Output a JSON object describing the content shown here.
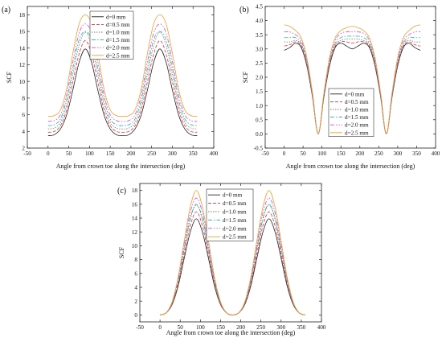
{
  "colors": [
    "#222222",
    "#e8333b",
    "#7a7a7a",
    "#2bb0a0",
    "#d24bd0",
    "#f0a030"
  ],
  "chart_data": [
    {
      "panel": "(a)",
      "type": "line",
      "xlabel": "Angle from crown toe along the intersection (deg)",
      "ylabel": "SCF",
      "xlim": [
        -50,
        400
      ],
      "ylim": [
        2,
        19
      ],
      "xticks": [
        -50,
        0,
        50,
        100,
        150,
        200,
        250,
        300,
        350,
        400
      ],
      "yticks": [
        2,
        4,
        6,
        8,
        10,
        12,
        14,
        16,
        18
      ],
      "legend": "top-center",
      "x": [
        0,
        15,
        30,
        45,
        60,
        75,
        90,
        105,
        120,
        135,
        150,
        165,
        180,
        195,
        210,
        225,
        240,
        255,
        270,
        285,
        300,
        315,
        330,
        345,
        360
      ],
      "series": [
        {
          "name": "d=0 mm",
          "values": [
            3.5,
            3.6,
            4.3,
            6.0,
            9.0,
            12.3,
            13.9,
            12.3,
            9.0,
            6.0,
            4.3,
            3.6,
            3.5,
            3.6,
            4.3,
            6.0,
            9.0,
            12.3,
            13.9,
            12.3,
            9.0,
            6.0,
            4.3,
            3.6,
            3.5
          ]
        },
        {
          "name": "d=0.5 mm",
          "values": [
            3.9,
            4.0,
            4.7,
            6.6,
            10.0,
            13.3,
            14.9,
            13.3,
            10.0,
            6.6,
            4.7,
            4.0,
            3.9,
            4.0,
            4.7,
            6.6,
            10.0,
            13.3,
            14.9,
            13.3,
            10.0,
            6.6,
            4.7,
            4.0,
            3.9
          ]
        },
        {
          "name": "d=1.0 mm",
          "values": [
            4.3,
            4.4,
            5.1,
            7.2,
            10.9,
            14.3,
            15.9,
            14.3,
            10.9,
            7.2,
            5.1,
            4.4,
            4.3,
            4.4,
            5.1,
            7.2,
            10.9,
            14.3,
            15.9,
            14.3,
            10.9,
            7.2,
            5.1,
            4.4,
            4.3
          ]
        },
        {
          "name": "d=1.5 mm",
          "values": [
            4.7,
            4.8,
            5.5,
            7.8,
            11.6,
            15.0,
            16.0,
            15.0,
            11.6,
            7.8,
            5.5,
            4.8,
            4.7,
            4.8,
            5.5,
            7.8,
            11.6,
            15.0,
            16.0,
            15.0,
            11.6,
            7.8,
            5.5,
            4.8,
            4.7
          ]
        },
        {
          "name": "d=2.0 mm",
          "values": [
            5.2,
            5.3,
            6.0,
            8.4,
            12.4,
            15.8,
            16.9,
            15.8,
            12.4,
            8.4,
            6.0,
            5.3,
            5.2,
            5.3,
            6.0,
            8.4,
            12.4,
            15.8,
            16.9,
            15.8,
            12.4,
            8.4,
            6.0,
            5.3,
            5.2
          ]
        },
        {
          "name": "d=2.5 mm",
          "values": [
            5.8,
            5.9,
            6.6,
            9.1,
            13.4,
            16.9,
            18.0,
            16.9,
            13.4,
            9.1,
            6.6,
            5.9,
            5.8,
            5.9,
            6.6,
            9.1,
            13.4,
            16.9,
            18.0,
            16.9,
            13.4,
            9.1,
            6.6,
            5.9,
            5.8
          ]
        }
      ]
    },
    {
      "panel": "(b)",
      "type": "line",
      "xlabel": "Angle from crown toe along the intersection (deg)",
      "ylabel": "SCF",
      "xlim": [
        -50,
        400
      ],
      "ylim": [
        -0.5,
        4.5
      ],
      "xticks": [
        -50,
        0,
        50,
        100,
        150,
        200,
        250,
        300,
        350,
        400
      ],
      "yticks": [
        -0.5,
        0.0,
        0.5,
        1.0,
        1.5,
        2.0,
        2.5,
        3.0,
        3.5,
        4.0,
        4.5
      ],
      "legend": "bottom-right",
      "x": [
        0,
        15,
        30,
        45,
        60,
        75,
        90,
        105,
        120,
        135,
        150,
        165,
        180,
        195,
        210,
        225,
        240,
        255,
        270,
        285,
        300,
        315,
        330,
        345,
        360
      ],
      "series": [
        {
          "name": "d=0 mm",
          "values": [
            2.95,
            3.05,
            3.2,
            3.05,
            2.4,
            1.3,
            0.0,
            1.3,
            2.4,
            3.05,
            3.2,
            3.1,
            3.0,
            3.1,
            3.2,
            3.05,
            2.4,
            1.3,
            0.0,
            1.3,
            2.4,
            3.05,
            3.2,
            3.05,
            2.95
          ]
        },
        {
          "name": "d=0.5 mm",
          "values": [
            3.1,
            3.15,
            3.25,
            3.1,
            2.45,
            1.3,
            0.0,
            1.3,
            2.45,
            3.1,
            3.25,
            3.25,
            3.2,
            3.25,
            3.25,
            3.1,
            2.45,
            1.3,
            0.0,
            1.3,
            2.45,
            3.1,
            3.25,
            3.15,
            3.1
          ]
        },
        {
          "name": "d=1.0 mm",
          "values": [
            3.25,
            3.25,
            3.3,
            3.15,
            2.5,
            1.35,
            0.0,
            1.35,
            2.5,
            3.15,
            3.3,
            3.35,
            3.35,
            3.35,
            3.3,
            3.15,
            2.5,
            1.35,
            0.0,
            1.35,
            2.5,
            3.15,
            3.3,
            3.25,
            3.25
          ]
        },
        {
          "name": "d=1.5 mm",
          "values": [
            3.4,
            3.4,
            3.4,
            3.2,
            2.55,
            1.35,
            0.0,
            1.35,
            2.55,
            3.2,
            3.4,
            3.45,
            3.45,
            3.45,
            3.4,
            3.2,
            2.55,
            1.35,
            0.0,
            1.35,
            2.55,
            3.2,
            3.4,
            3.4,
            3.4
          ]
        },
        {
          "name": "d=2.0 mm",
          "values": [
            3.6,
            3.6,
            3.5,
            3.3,
            2.6,
            1.4,
            0.0,
            1.4,
            2.6,
            3.3,
            3.55,
            3.6,
            3.6,
            3.6,
            3.55,
            3.3,
            2.6,
            1.4,
            0.0,
            1.4,
            2.6,
            3.3,
            3.5,
            3.6,
            3.6
          ]
        },
        {
          "name": "d=2.5 mm",
          "values": [
            3.85,
            3.8,
            3.65,
            3.4,
            2.7,
            1.45,
            0.0,
            1.45,
            2.7,
            3.4,
            3.65,
            3.75,
            3.8,
            3.75,
            3.65,
            3.4,
            2.7,
            1.45,
            0.0,
            1.45,
            2.7,
            3.4,
            3.65,
            3.8,
            3.85
          ]
        }
      ]
    },
    {
      "panel": "(c)",
      "type": "line",
      "xlabel": "Angle from crown toe along the intersection (deg)",
      "ylabel": "SCF",
      "xlim": [
        -50,
        400
      ],
      "ylim": [
        -1,
        19
      ],
      "xticks": [
        -50,
        0,
        50,
        100,
        150,
        200,
        250,
        300,
        350,
        400
      ],
      "yticks": [
        0,
        2,
        4,
        6,
        8,
        10,
        12,
        14,
        16,
        18
      ],
      "legend": "top-center",
      "x": [
        0,
        15,
        30,
        45,
        60,
        75,
        90,
        105,
        120,
        135,
        150,
        165,
        180,
        195,
        210,
        225,
        240,
        255,
        270,
        285,
        300,
        315,
        330,
        345,
        360
      ],
      "series": [
        {
          "name": "d=0 mm",
          "values": [
            0.0,
            0.3,
            1.5,
            4.2,
            8.2,
            12.0,
            13.9,
            12.0,
            8.2,
            4.2,
            1.5,
            0.3,
            0.0,
            0.3,
            1.5,
            4.2,
            8.2,
            12.0,
            13.9,
            12.0,
            8.2,
            4.2,
            1.5,
            0.3,
            0.0
          ]
        },
        {
          "name": "d=0.5 mm",
          "values": [
            0.0,
            0.3,
            1.6,
            4.5,
            8.8,
            12.9,
            14.9,
            12.9,
            8.8,
            4.5,
            1.6,
            0.3,
            0.0,
            0.3,
            1.6,
            4.5,
            8.8,
            12.9,
            14.9,
            12.9,
            8.8,
            4.5,
            1.6,
            0.3,
            0.0
          ]
        },
        {
          "name": "d=1.0 mm",
          "values": [
            0.0,
            0.3,
            1.7,
            4.8,
            9.4,
            13.8,
            15.9,
            13.8,
            9.4,
            4.8,
            1.7,
            0.3,
            0.0,
            0.3,
            1.7,
            4.8,
            9.4,
            13.8,
            15.9,
            13.8,
            9.4,
            4.8,
            1.7,
            0.3,
            0.0
          ]
        },
        {
          "name": "d=1.5 mm",
          "values": [
            0.0,
            0.3,
            1.7,
            4.9,
            9.6,
            14.0,
            16.0,
            14.0,
            9.6,
            4.9,
            1.7,
            0.3,
            0.0,
            0.3,
            1.7,
            4.9,
            9.6,
            14.0,
            16.0,
            14.0,
            9.6,
            4.9,
            1.7,
            0.3,
            0.0
          ]
        },
        {
          "name": "d=2.0 mm",
          "values": [
            0.0,
            0.3,
            1.8,
            5.2,
            10.1,
            14.8,
            16.9,
            14.8,
            10.1,
            5.2,
            1.8,
            0.3,
            0.0,
            0.3,
            1.8,
            5.2,
            10.1,
            14.8,
            16.9,
            14.8,
            10.1,
            5.2,
            1.8,
            0.3,
            0.0
          ]
        },
        {
          "name": "d=2.5 mm",
          "values": [
            0.0,
            0.3,
            1.9,
            5.5,
            10.7,
            15.6,
            18.0,
            15.6,
            10.7,
            5.5,
            1.9,
            0.3,
            0.0,
            0.3,
            1.9,
            5.5,
            10.7,
            15.6,
            18.0,
            15.6,
            10.7,
            5.5,
            1.9,
            0.3,
            0.0
          ]
        }
      ]
    }
  ]
}
